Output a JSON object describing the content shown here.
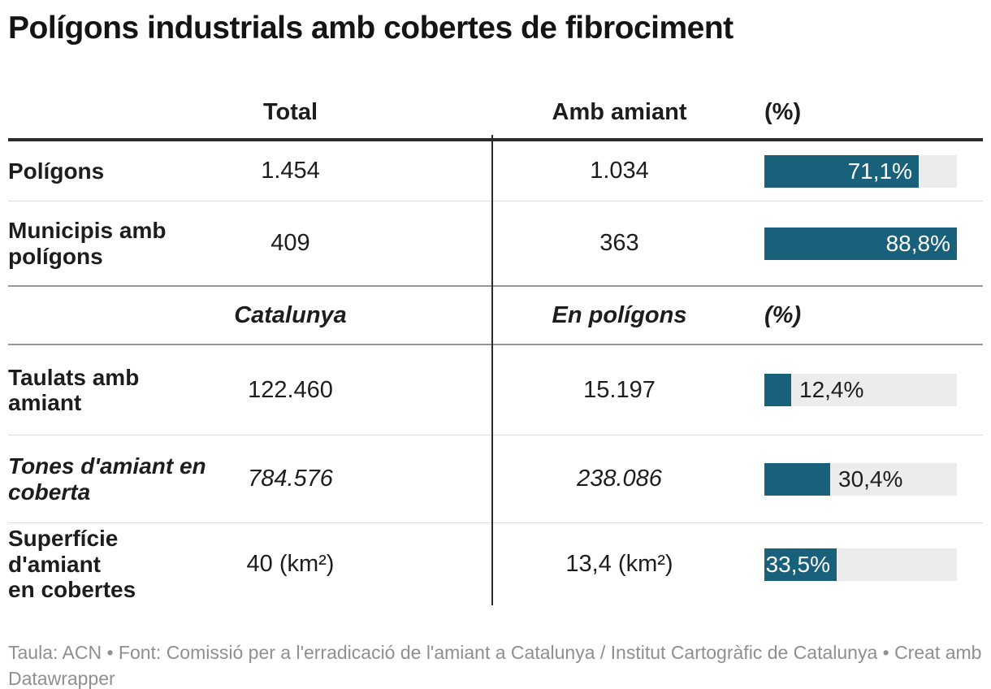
{
  "title": "Polígons industrials amb cobertes de fibrociment",
  "table": {
    "header_top": {
      "total": "Total",
      "amb": "Amb amiant",
      "pct": "(%)"
    },
    "header_mid": {
      "total": "Catalunya",
      "amb": "En polígons",
      "pct": "(%)"
    },
    "bar_scale_max": 88.8,
    "rows": [
      {
        "label": "Polígons",
        "total": "1.454",
        "amb": "1.034",
        "pct": 71.1,
        "pct_label": "71,1%",
        "label_inside": true,
        "italic": false
      },
      {
        "label": "Municipis amb\npolígons",
        "total": "409",
        "amb": "363",
        "pct": 88.8,
        "pct_label": "88,8%",
        "label_inside": true,
        "italic": false
      },
      {
        "label": "Taulats amb\namiant",
        "total": "122.460",
        "amb": "15.197",
        "pct": 12.4,
        "pct_label": "12,4%",
        "label_inside": false,
        "italic": false
      },
      {
        "label": "Tones d'amiant en\ncoberta",
        "total": "784.576",
        "amb": "238.086",
        "pct": 30.4,
        "pct_label": "30,4%",
        "label_inside": false,
        "italic": true
      },
      {
        "label": "Superfície d'amiant\nen cobertes",
        "total": "40 (km²)",
        "amb": "13,4 (km²)",
        "pct": 33.5,
        "pct_label": "33,5%",
        "label_inside": true,
        "italic": false
      }
    ]
  },
  "footer": "Taula: ACN • Font: Comissió per a l'erradicació de l'amiant a Catalunya / Institut Cartogràfic de Catalunya  • Creat amb\nDatawrapper",
  "colors": {
    "bar_fill": "#19617a",
    "bar_track": "#ececec",
    "rule_dark": "#2b2b2b",
    "rule_medium": "#949494",
    "rule_light": "#dddddd",
    "text": "#1d1d1d",
    "footer_text": "#8f8f8f"
  },
  "chart_data": {
    "type": "table",
    "title": "Polígons industrials amb cobertes de fibrociment",
    "bar_scale_max": 88.8,
    "bar_color": "#19617a",
    "sections": [
      {
        "columns": [
          "",
          "Total",
          "Amb amiant",
          "(%)"
        ],
        "rows": [
          [
            "Polígons",
            1454,
            1034,
            71.1
          ],
          [
            "Municipis amb polígons",
            409,
            363,
            88.8
          ]
        ]
      },
      {
        "columns": [
          "",
          "Catalunya",
          "En polígons",
          "(%)"
        ],
        "rows": [
          [
            "Taulats amb amiant",
            122460,
            15197,
            12.4
          ],
          [
            "Tones d'amiant en coberta",
            784576,
            238086,
            30.4
          ],
          [
            "Superfície d'amiant en cobertes (km²)",
            40,
            13.4,
            33.5
          ]
        ]
      }
    ],
    "source": "Taula: ACN • Font: Comissió per a l'erradicació de l'amiant a Catalunya / Institut Cartogràfic de Catalunya • Creat amb Datawrapper"
  }
}
